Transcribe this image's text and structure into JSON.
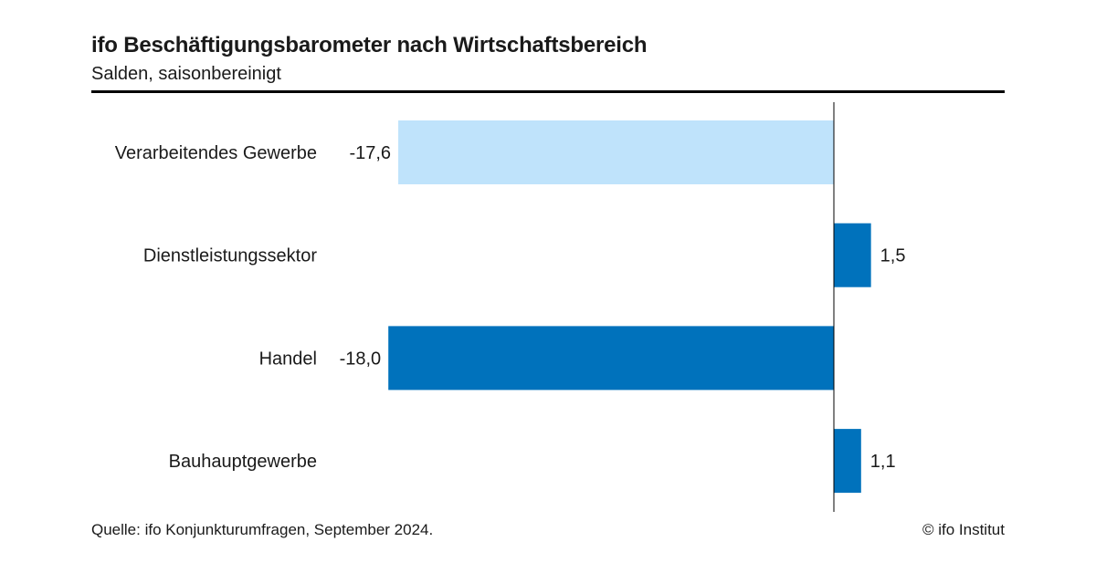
{
  "header": {
    "title": "ifo Beschäftigungsbarometer nach Wirtschaftsbereich",
    "subtitle": "Salden, saisonbereinigt"
  },
  "footer": {
    "source": "Quelle: ifo Konjunkturumfragen, September 2024.",
    "copyright": "© ifo Institut"
  },
  "chart_data": {
    "type": "bar",
    "orientation": "horizontal",
    "title": "ifo Beschäftigungsbarometer nach Wirtschaftsbereich",
    "subtitle": "Salden, saisonbereinigt",
    "categories": [
      "Verarbeitendes Gewerbe",
      "Dienstleistungssektor",
      "Handel",
      "Bauhauptgewerbe"
    ],
    "values": [
      -17.6,
      1.5,
      -18.0,
      1.1
    ],
    "value_labels": [
      "-17,6",
      "1,5",
      "-18,0",
      "1,1"
    ],
    "bar_colors": [
      "#bfe3fb",
      "#0072bc",
      "#0072bc",
      "#0072bc"
    ],
    "grid": false,
    "legend": "none"
  }
}
